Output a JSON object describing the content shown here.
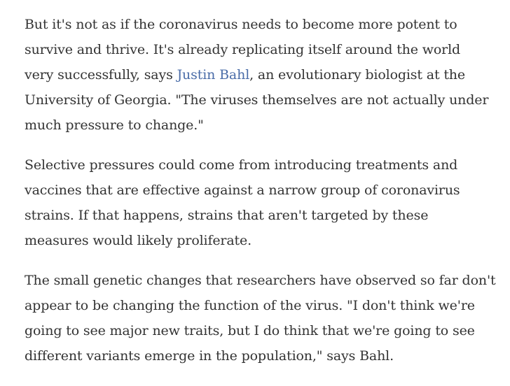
{
  "article": {
    "paragraphs": [
      {
        "lines": [
          {
            "text": "But it's not as if the coronavirus needs to become more potent to"
          },
          {
            "text": "survive and thrive. It's already replicating itself around the world"
          },
          {
            "before": "very successfully, says ",
            "link": "Justin Bahl",
            "after": ", an evolutionary biologist at the"
          },
          {
            "text": "University of Georgia. \"The viruses themselves are not actually under"
          },
          {
            "text": "much pressure to change.\""
          }
        ]
      },
      {
        "lines": [
          {
            "text": "Selective pressures could come from introducing treatments and"
          },
          {
            "text": "vaccines that are effective against a narrow group of coronavirus"
          },
          {
            "text": "strains. If that happens, strains that aren't targeted by these"
          },
          {
            "text": "measures would likely proliferate."
          }
        ]
      },
      {
        "lines": [
          {
            "text": "The small genetic changes that researchers have observed so far don't"
          },
          {
            "text": "appear to be changing the function of the virus. \"I don't think we're"
          },
          {
            "text": "going to see major new traits, but I do think that we're going to see"
          },
          {
            "text": "different variants emerge in the population,\" says Bahl."
          }
        ]
      }
    ]
  }
}
